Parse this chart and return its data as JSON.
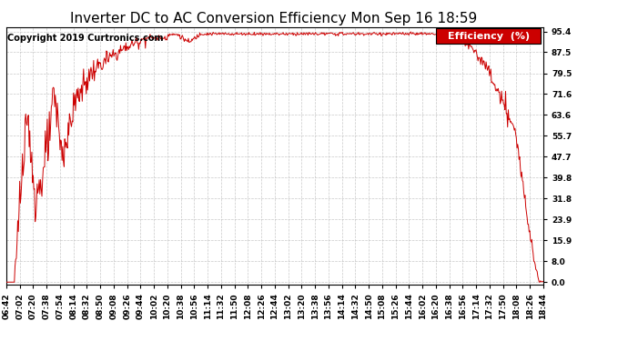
{
  "title": "Inverter DC to AC Conversion Efficiency Mon Sep 16 18:59",
  "copyright": "Copyright 2019 Curtronics.com",
  "legend_label": "Efficiency  (%)",
  "legend_bg": "#cc0000",
  "legend_fg": "#ffffff",
  "line_color": "#cc0000",
  "background_color": "#ffffff",
  "grid_color": "#bbbbbb",
  "ytick_labels": [
    "0.0",
    "8.0",
    "15.9",
    "23.9",
    "31.8",
    "39.8",
    "47.7",
    "55.7",
    "63.6",
    "71.6",
    "79.5",
    "87.5",
    "95.4"
  ],
  "ytick_values": [
    0.0,
    8.0,
    15.9,
    23.9,
    31.8,
    39.8,
    47.7,
    55.7,
    63.6,
    71.6,
    79.5,
    87.5,
    95.4
  ],
  "xtick_labels": [
    "06:42",
    "07:02",
    "07:20",
    "07:38",
    "07:54",
    "08:14",
    "08:32",
    "08:50",
    "09:08",
    "09:26",
    "09:44",
    "10:02",
    "10:20",
    "10:38",
    "10:56",
    "11:14",
    "11:32",
    "11:50",
    "12:08",
    "12:26",
    "12:44",
    "13:02",
    "13:20",
    "13:38",
    "13:56",
    "14:14",
    "14:32",
    "14:50",
    "15:08",
    "15:26",
    "15:44",
    "16:02",
    "16:20",
    "16:38",
    "16:56",
    "17:14",
    "17:32",
    "17:50",
    "18:08",
    "18:26",
    "18:44"
  ],
  "ymin": -1.0,
  "ymax": 97.0,
  "title_fontsize": 11,
  "copyright_fontsize": 7,
  "legend_fontsize": 8,
  "tick_fontsize": 6.5,
  "line_width": 0.7
}
